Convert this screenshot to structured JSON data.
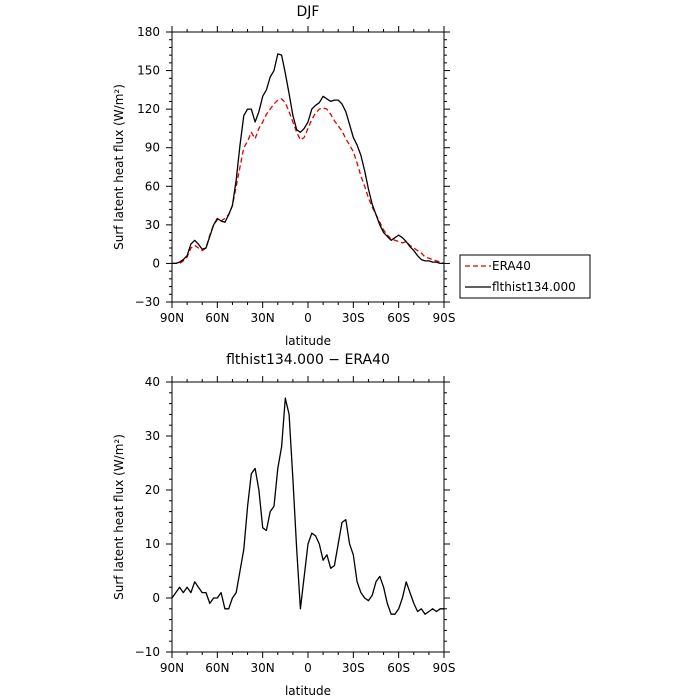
{
  "chart_data": [
    {
      "type": "line",
      "title": "DJF",
      "xlabel": "latitude",
      "ylabel": "Surf latent heat flux (W/m²)",
      "xlim": [
        90,
        -90
      ],
      "ylim": [
        -30,
        180
      ],
      "xticks": [
        90,
        60,
        30,
        0,
        -30,
        -60,
        -90
      ],
      "xtick_labels": [
        "90N",
        "60N",
        "30N",
        "0",
        "30S",
        "60S",
        "90S"
      ],
      "yticks": [
        -30,
        0,
        30,
        60,
        90,
        120,
        150,
        180
      ],
      "ytick_labels": [
        "−30",
        "0",
        "30",
        "60",
        "90",
        "120",
        "150",
        "180"
      ],
      "legend": "outside-right",
      "series": [
        {
          "name": "ERA40",
          "color": "#e00000",
          "dash": "dashed",
          "x": [
            90,
            87.5,
            85,
            82.5,
            80,
            77.5,
            75,
            72.5,
            70,
            67.5,
            65,
            62.5,
            60,
            57.5,
            55,
            52.5,
            50,
            47.5,
            45,
            42.5,
            40,
            37.5,
            35,
            32.5,
            30,
            27.5,
            25,
            22.5,
            20,
            17.5,
            15,
            12.5,
            10,
            7.5,
            5,
            2.5,
            0,
            -2.5,
            -5,
            -7.5,
            -10,
            -12.5,
            -15,
            -17.5,
            -20,
            -22.5,
            -25,
            -27.5,
            -30,
            -32.5,
            -35,
            -37.5,
            -40,
            -42.5,
            -45,
            -47.5,
            -50,
            -52.5,
            -55,
            -57.5,
            -60,
            -62.5,
            -65,
            -67.5,
            -70,
            -72.5,
            -75,
            -77.5,
            -80,
            -82.5,
            -85,
            -87.5,
            -90
          ],
          "values": [
            0,
            0,
            0,
            2,
            5,
            12,
            14,
            12,
            10,
            12,
            22,
            30,
            34,
            33,
            35,
            38,
            45,
            60,
            75,
            90,
            95,
            102,
            97,
            105,
            110,
            116,
            120,
            124,
            127,
            128,
            125,
            118,
            110,
            102,
            96,
            98,
            105,
            112,
            117,
            120,
            121,
            120,
            116,
            111,
            107,
            103,
            97,
            92,
            87,
            78,
            68,
            60,
            51,
            44,
            38,
            32,
            26,
            22,
            19,
            18,
            17,
            16,
            17,
            14,
            12,
            10,
            8,
            5,
            4,
            3,
            2,
            1,
            0
          ]
        },
        {
          "name": "flthist134.000",
          "color": "#000000",
          "dash": "solid",
          "x": [
            90,
            87.5,
            85,
            82.5,
            80,
            77.5,
            75,
            72.5,
            70,
            67.5,
            65,
            62.5,
            60,
            57.5,
            55,
            52.5,
            50,
            47.5,
            45,
            42.5,
            40,
            37.5,
            35,
            32.5,
            30,
            27.5,
            25,
            22.5,
            20,
            17.5,
            15,
            12.5,
            10,
            7.5,
            5,
            2.5,
            0,
            -2.5,
            -5,
            -7.5,
            -10,
            -12.5,
            -15,
            -17.5,
            -20,
            -22.5,
            -25,
            -27.5,
            -30,
            -32.5,
            -35,
            -37.5,
            -40,
            -42.5,
            -45,
            -47.5,
            -50,
            -52.5,
            -55,
            -57.5,
            -60,
            -62.5,
            -65,
            -67.5,
            -70,
            -72.5,
            -75,
            -77.5,
            -80,
            -82.5,
            -85,
            -87.5,
            -90
          ],
          "values": [
            0,
            0,
            1,
            3,
            6,
            15,
            18,
            15,
            11,
            12,
            21,
            30,
            35,
            33,
            32,
            38,
            45,
            65,
            92,
            115,
            120,
            120,
            110,
            118,
            130,
            135,
            145,
            150,
            163,
            162,
            148,
            132,
            115,
            104,
            102,
            105,
            110,
            120,
            123,
            125,
            130,
            128,
            126,
            127,
            127,
            124,
            118,
            108,
            98,
            92,
            84,
            72,
            58,
            46,
            38,
            30,
            24,
            21,
            18,
            20,
            22,
            20,
            17,
            13,
            10,
            6,
            3,
            2,
            2,
            1,
            1,
            0,
            0
          ]
        }
      ]
    },
    {
      "type": "line",
      "title": "flthist134.000 − ERA40",
      "xlabel": "latitude",
      "ylabel": "Surf latent heat flux (W/m²)",
      "xlim": [
        90,
        -90
      ],
      "ylim": [
        -10,
        40
      ],
      "xticks": [
        90,
        60,
        30,
        0,
        -30,
        -60,
        -90
      ],
      "xtick_labels": [
        "90N",
        "60N",
        "30N",
        "0",
        "30S",
        "60S",
        "90S"
      ],
      "yticks": [
        -10,
        0,
        10,
        20,
        30,
        40
      ],
      "ytick_labels": [
        "−10",
        "0",
        "10",
        "20",
        "30",
        "40"
      ],
      "series": [
        {
          "color": "#000000",
          "dash": "solid",
          "x": [
            90,
            87.5,
            85,
            82.5,
            80,
            77.5,
            75,
            72.5,
            70,
            67.5,
            65,
            62.5,
            60,
            57.5,
            55,
            52.5,
            50,
            47.5,
            45,
            42.5,
            40,
            37.5,
            35,
            32.5,
            30,
            27.5,
            25,
            22.5,
            20,
            17.5,
            15,
            12.5,
            10,
            7.5,
            5,
            2.5,
            0,
            -2.5,
            -5,
            -7.5,
            -10,
            -12.5,
            -15,
            -17.5,
            -20,
            -22.5,
            -25,
            -27.5,
            -30,
            -32.5,
            -35,
            -37.5,
            -40,
            -42.5,
            -45,
            -47.5,
            -50,
            -52.5,
            -55,
            -57.5,
            -60,
            -62.5,
            -65,
            -67.5,
            -70,
            -72.5,
            -75,
            -77.5,
            -80,
            -82.5,
            -85,
            -87.5,
            -90
          ],
          "values": [
            0,
            1,
            2,
            1,
            2,
            1,
            3,
            2,
            1,
            1,
            -1,
            0,
            0,
            1,
            -2,
            -2,
            0,
            1,
            5,
            9,
            17,
            23,
            24,
            20,
            13,
            12.5,
            16,
            17,
            24,
            28,
            37,
            34,
            22,
            9,
            -2,
            4,
            10,
            12,
            11.5,
            10,
            7,
            8,
            5.5,
            6,
            10,
            14,
            14.5,
            10,
            8,
            3,
            1,
            0,
            -0.5,
            0.5,
            3,
            4,
            2,
            -1,
            -3,
            -3,
            -2,
            0,
            3,
            1,
            -1,
            -2.5,
            -2,
            -3,
            -2.5,
            -2,
            -2.5,
            -2,
            -2
          ]
        }
      ]
    }
  ]
}
